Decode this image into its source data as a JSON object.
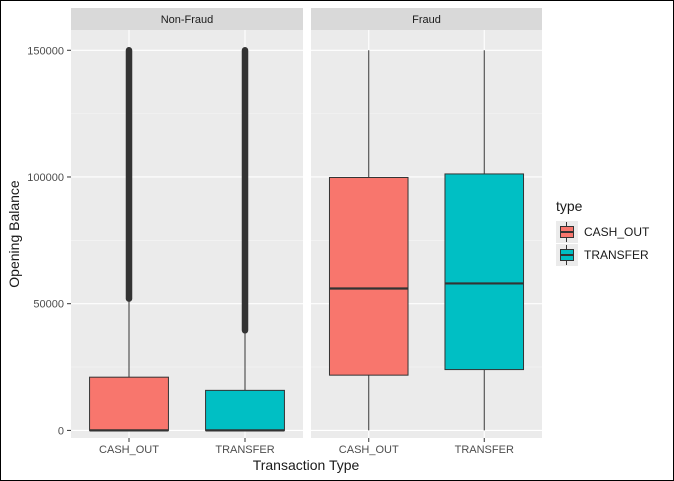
{
  "chart_data": {
    "type": "boxplot",
    "x_label": "Transaction Type",
    "y_label": "Opening Balance",
    "ylim": [
      -3000,
      158000
    ],
    "y_ticks": [
      0,
      50000,
      100000,
      150000
    ],
    "y_tick_labels": [
      "0",
      "50000",
      "100000",
      "150000"
    ],
    "categories": [
      "CASH_OUT",
      "TRANSFER"
    ],
    "legend": {
      "title": "type",
      "position": "right",
      "entries": [
        {
          "label": "CASH_OUT",
          "color": "#F8766D"
        },
        {
          "label": "TRANSFER",
          "color": "#00BFC4"
        }
      ]
    },
    "panels": [
      {
        "strip": "Non-Fraud",
        "boxes": [
          {
            "category": "CASH_OUT",
            "q1": 0,
            "median": 0,
            "q3": 21000,
            "whisker_low": 0,
            "whisker_high": 52000,
            "outliers_from": 52000,
            "outliers_to": 150000
          },
          {
            "category": "TRANSFER",
            "q1": 0,
            "median": 0,
            "q3": 15800,
            "whisker_low": 0,
            "whisker_high": 39500,
            "outliers_from": 39500,
            "outliers_to": 150000
          }
        ]
      },
      {
        "strip": "Fraud",
        "boxes": [
          {
            "category": "CASH_OUT",
            "q1": 21800,
            "median": 56000,
            "q3": 99800,
            "whisker_low": 0,
            "whisker_high": 150000
          },
          {
            "category": "TRANSFER",
            "q1": 24000,
            "median": 58000,
            "q3": 101200,
            "whisker_low": 0,
            "whisker_high": 150000
          }
        ]
      }
    ]
  }
}
